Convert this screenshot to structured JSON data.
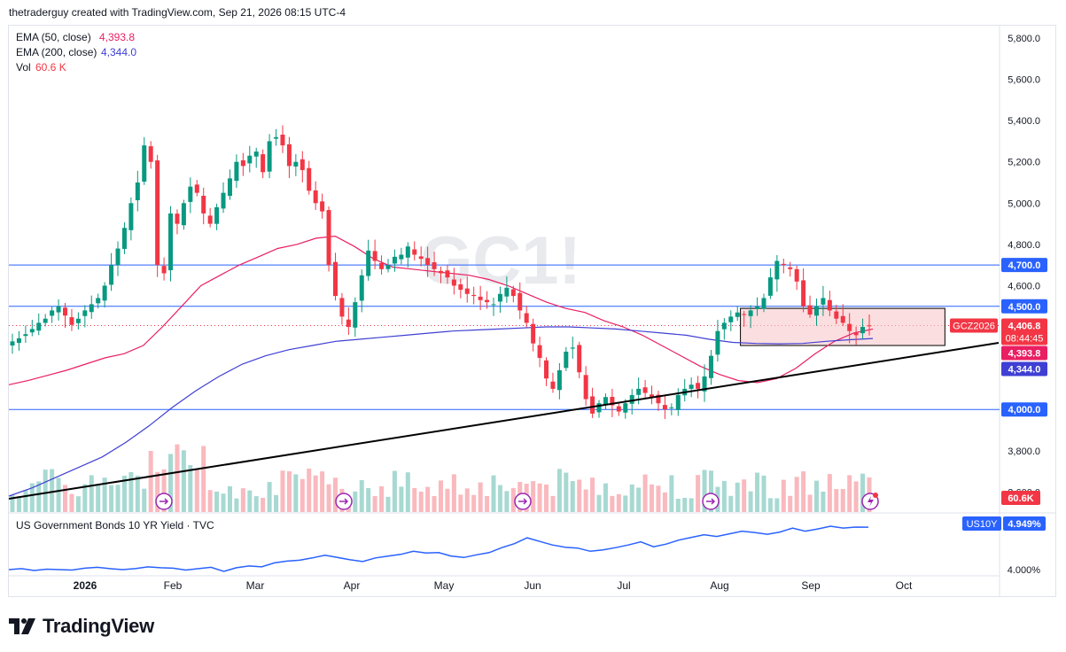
{
  "header": {
    "text": "thetraderguy created with TradingView.com, Sep 21, 2026 08:15 UTC-4"
  },
  "legend": {
    "ema50": {
      "label": "EMA (50, close)",
      "value": "4,393.8"
    },
    "ema200": {
      "label": "EMA (200, close)",
      "value": "4,344.0"
    },
    "vol": {
      "label": "Vol",
      "value": "60.6 K"
    }
  },
  "watermark": "GC1!",
  "footer": {
    "brand": "TradingView"
  },
  "colors": {
    "up": "#089981",
    "down": "#f23645",
    "ema50": "#e91e63",
    "ema200": "#3f3fd4",
    "hline": "#2962ff",
    "trend": "#000000",
    "vol_up": "#a7d9d2",
    "vol_down": "#f9b9be",
    "box_fill": "#f8c8cc",
    "box_stroke": "#000000",
    "yield": "#2962ff"
  },
  "chart_data": [
    {
      "type": "candlestick",
      "title": "",
      "symbol": "GCZ2026",
      "ylim": [
        3400,
        5900
      ],
      "y_ticks": [
        "5,800.0",
        "5,600.0",
        "5,400.0",
        "5,200.0",
        "5,000.0",
        "4,800.0",
        "4,600.0",
        "3,800.0",
        "3,600.0"
      ],
      "x_ticks": [
        "2026",
        "Feb",
        "Mar",
        "Apr",
        "May",
        "Jun",
        "Jul",
        "Aug",
        "Sep",
        "Oct"
      ],
      "horizontal_lines": [
        {
          "value": 4700,
          "label": "4,700.0"
        },
        {
          "value": 4500,
          "label": "4,500.0"
        },
        {
          "value": 4000,
          "label": "4,000.0"
        }
      ],
      "price_labels": [
        {
          "name": "last",
          "value": "4,406.8",
          "countdown": "08:44:45",
          "symbol_tag": "GCZ2026"
        },
        {
          "name": "ema50",
          "value": "4,393.8"
        },
        {
          "name": "ema200",
          "value": "4,344.0"
        },
        {
          "name": "volume",
          "value": "60.6K"
        }
      ],
      "trendline": {
        "from": [
          "2026-01-01",
          3420
        ],
        "to": [
          "2026-10-10",
          4345
        ]
      },
      "rectangle": {
        "from": [
          "2026-08-01",
          4490
        ],
        "to": [
          "2026-10-05",
          4310
        ]
      },
      "closes": [
        4330,
        4345,
        4365,
        4390,
        4420,
        4440,
        4480,
        4500,
        4455,
        4410,
        4440,
        4480,
        4510,
        4540,
        4600,
        4700,
        4780,
        4880,
        5000,
        5100,
        5280,
        5200,
        4700,
        4660,
        4950,
        4900,
        5000,
        5080,
        5050,
        4950,
        4900,
        4980,
        5050,
        5120,
        5200,
        5180,
        5230,
        5250,
        5150,
        5300,
        5320,
        5280,
        5180,
        5200,
        5160,
        5060,
        5000,
        4960,
        4700,
        4550,
        4450,
        4400,
        4520,
        4650,
        4770,
        4720,
        4680,
        4700,
        4740,
        4750,
        4790,
        4750,
        4730,
        4700,
        4680,
        4660,
        4640,
        4600,
        4580,
        4560,
        4550,
        4530,
        4520,
        4510,
        4560,
        4590,
        4550,
        4480,
        4420,
        4320,
        4250,
        4150,
        4100,
        4190,
        4280,
        4300,
        4180,
        4050,
        3980,
        4030,
        4060,
        4020,
        3990,
        4030,
        4070,
        4100,
        4080,
        4060,
        4030,
        4000,
        4010,
        4070,
        4100,
        4120,
        4100,
        4160,
        4260,
        4380,
        4420,
        4450,
        4470,
        4460,
        4480,
        4500,
        4540,
        4640,
        4720,
        4700,
        4680,
        4620,
        4500,
        4460,
        4500,
        4540,
        4480,
        4440,
        4420,
        4380,
        4360,
        4400,
        4407
      ],
      "ema50": [
        4120,
        4140,
        4165,
        4190,
        4220,
        4250,
        4270,
        4310,
        4400,
        4500,
        4600,
        4650,
        4700,
        4740,
        4780,
        4800,
        4830,
        4840,
        4790,
        4730,
        4690,
        4680,
        4670,
        4660,
        4650,
        4630,
        4600,
        4560,
        4520,
        4490,
        4470,
        4430,
        4400,
        4360,
        4310,
        4260,
        4210,
        4170,
        4140,
        4130,
        4150,
        4200,
        4270,
        4330,
        4370,
        4390
      ],
      "ema200": [
        3580,
        3620,
        3670,
        3720,
        3770,
        3840,
        3920,
        4010,
        4090,
        4160,
        4220,
        4260,
        4290,
        4310,
        4330,
        4340,
        4350,
        4360,
        4370,
        4380,
        4385,
        4390,
        4395,
        4400,
        4400,
        4395,
        4390,
        4380,
        4370,
        4360,
        4340,
        4325,
        4320,
        4318,
        4320,
        4330,
        4338,
        4344
      ],
      "volume_last": "60.6K"
    },
    {
      "type": "line",
      "title": "US Government Bonds 10 YR Yield · TVC",
      "symbol": "US10Y",
      "last": "4.949%",
      "y_ticks": [
        "4.000%"
      ],
      "values": [
        4.0,
        4.02,
        3.98,
        4.01,
        4.0,
        3.99,
        4.03,
        4.05,
        4.02,
        4.0,
        4.02,
        4.06,
        4.04,
        4.03,
        3.99,
        4.02,
        4.05,
        3.96,
        4.04,
        4.08,
        4.06,
        4.15,
        4.19,
        4.21,
        4.26,
        4.32,
        4.27,
        4.22,
        4.18,
        4.26,
        4.3,
        4.34,
        4.41,
        4.37,
        4.38,
        4.3,
        4.27,
        4.33,
        4.38,
        4.49,
        4.58,
        4.71,
        4.63,
        4.55,
        4.5,
        4.48,
        4.41,
        4.44,
        4.49,
        4.55,
        4.62,
        4.51,
        4.57,
        4.66,
        4.72,
        4.78,
        4.74,
        4.8,
        4.86,
        4.83,
        4.79,
        4.84,
        4.93,
        4.86,
        4.91,
        4.97,
        4.93,
        4.95,
        4.949
      ]
    }
  ]
}
